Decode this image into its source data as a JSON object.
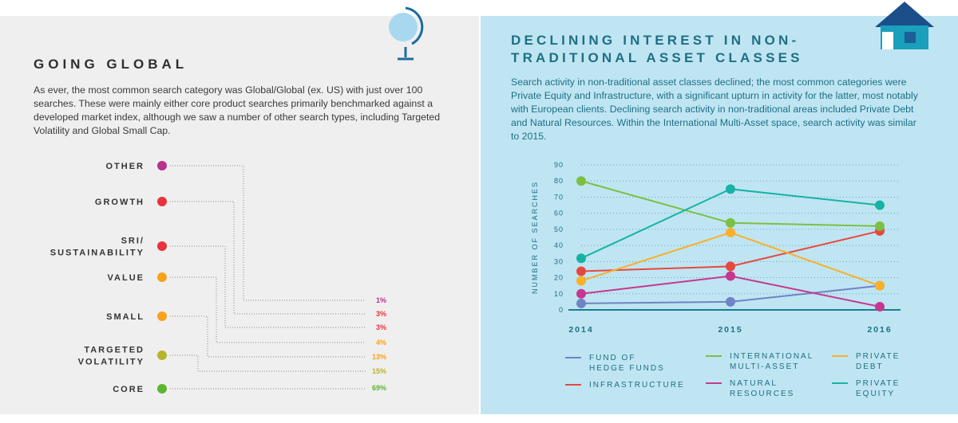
{
  "left": {
    "title": "GOING GLOBAL",
    "paragraph": "As ever, the most common search category was Global/Global (ex. US) with just over 100 searches. These were mainly either core product searches primarily benchmarked against a developed market index, although we saw a number of other search types, including Targeted Volatility and Global Small Cap.",
    "globe_icon": "globe-icon"
  },
  "right": {
    "title_line1": "DECLINING INTEREST IN NON-",
    "title_line2": "TRADITIONAL ASSET CLASSES",
    "paragraph": "Search activity in non-traditional asset classes declined; the most common categories were Private Equity and Infrastructure, with a significant upturn in activity for the latter, most notably with European clients. Declining search activity in non-traditional areas included Private Debt and Natural Resources. Within the International Multi-Asset space, search activity was similar to 2015.",
    "house_icon": "house-icon"
  },
  "chart_data": [
    {
      "type": "bar",
      "categories": [
        {
          "label_lines": [
            "OTHER"
          ],
          "value": 1,
          "color": "#b8318f"
        },
        {
          "label_lines": [
            "GROWTH"
          ],
          "value": 3,
          "color": "#e8323c"
        },
        {
          "label_lines": [
            "SRI/",
            "SUSTAINABILITY"
          ],
          "value": 3,
          "color": "#e8323c"
        },
        {
          "label_lines": [
            "VALUE"
          ],
          "value": 4,
          "color": "#f7a21b"
        },
        {
          "label_lines": [
            "SMALL"
          ],
          "value": 13,
          "color": "#f7a21b"
        },
        {
          "label_lines": [
            "TARGETED",
            "VOLATILITY"
          ],
          "value": 15,
          "color": "#b5b52a"
        },
        {
          "label_lines": [
            "CORE"
          ],
          "value": 69,
          "color": "#5cb531"
        }
      ],
      "value_labels": [
        "1%",
        "3%",
        "3%",
        "4%",
        "13%",
        "15%",
        "69%"
      ],
      "unit": "%"
    },
    {
      "type": "line",
      "ylabel": "NUMBER OF SEARCHES",
      "x": [
        "2014",
        "2015",
        "2016"
      ],
      "ylim": [
        0,
        90
      ],
      "yticks": [
        "0",
        "10",
        "20",
        "30",
        "40",
        "50",
        "60",
        "70",
        "80",
        "90"
      ],
      "grid": true,
      "legend_position": "bottom",
      "series": [
        {
          "name": "FUND OF HEDGE FUNDS",
          "name_lines": [
            "FUND OF",
            "HEDGE FUNDS"
          ],
          "color": "#6f83c6",
          "values": [
            4,
            5,
            15
          ]
        },
        {
          "name": "INFRASTRUCTURE",
          "name_lines": [
            "INFRASTRUCTURE"
          ],
          "color": "#e8473f",
          "values": [
            24,
            27,
            49
          ]
        },
        {
          "name": "INTERNATIONAL MULTI-ASSET",
          "name_lines": [
            "INTERNATIONAL",
            "MULTI-ASSET"
          ],
          "color": "#7bc043",
          "values": [
            80,
            54,
            52
          ]
        },
        {
          "name": "NATURAL RESOURCES",
          "name_lines": [
            "NATURAL",
            "RESOURCES"
          ],
          "color": "#c6388f",
          "values": [
            10,
            21,
            2
          ]
        },
        {
          "name": "PRIVATE DEBT",
          "name_lines": [
            "PRIVATE",
            "DEBT"
          ],
          "color": "#f9b02a",
          "values": [
            18,
            48,
            15
          ]
        },
        {
          "name": "PRIVATE EQUITY",
          "name_lines": [
            "PRIVATE",
            "EQUITY"
          ],
          "color": "#16b3a3",
          "values": [
            32,
            75,
            65
          ]
        }
      ]
    }
  ]
}
